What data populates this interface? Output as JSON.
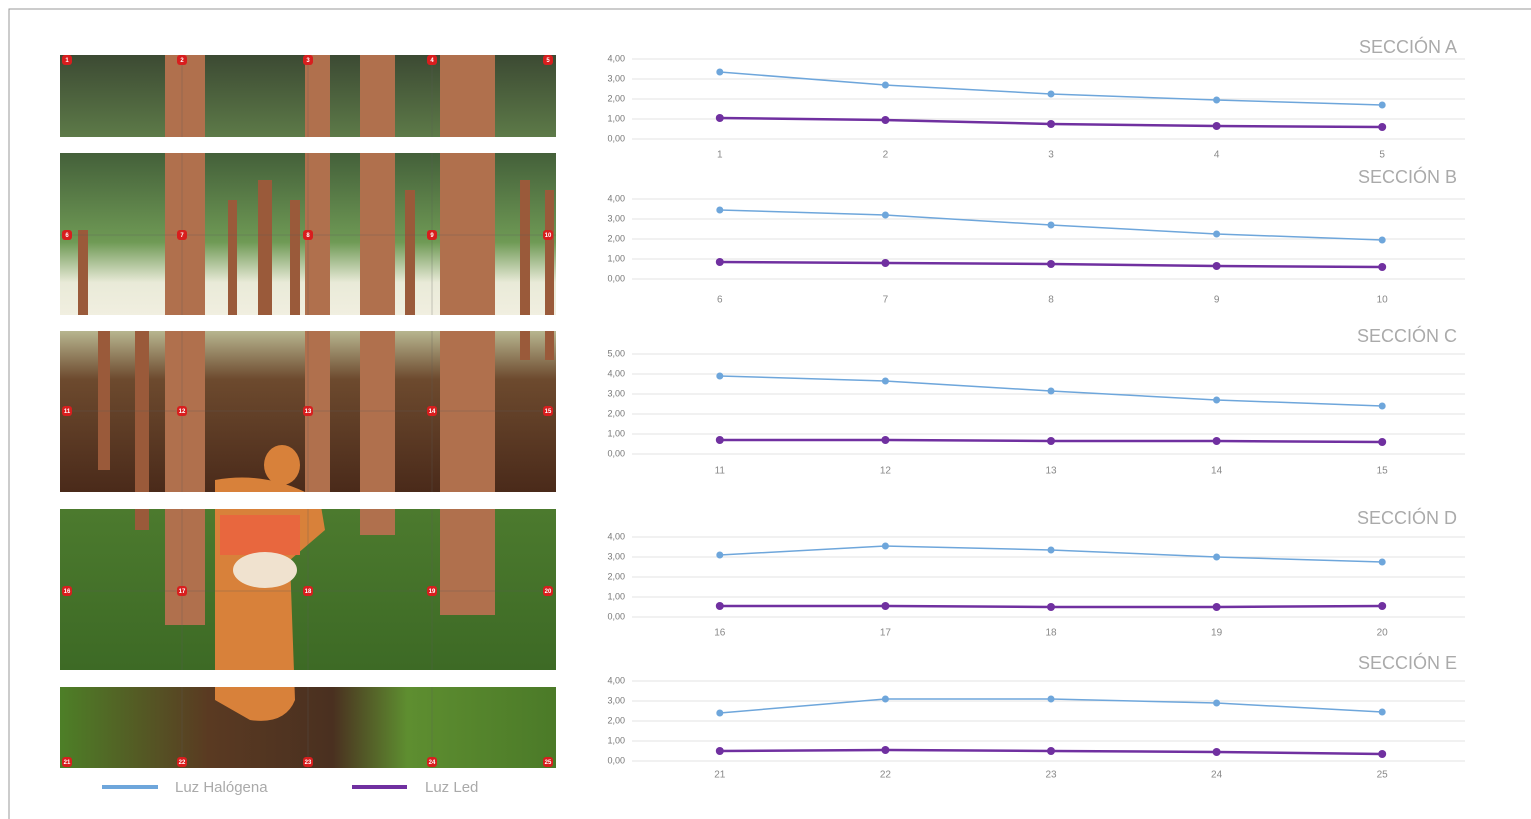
{
  "chart_data": [
    {
      "type": "line",
      "title": "SECCIÓN A",
      "categories": [
        "1",
        "2",
        "3",
        "4",
        "5"
      ],
      "series": [
        {
          "name": "Luz Halógena",
          "color": "#6ea6db",
          "values": [
            3.35,
            2.7,
            2.25,
            1.95,
            1.7
          ]
        },
        {
          "name": "Luz Led",
          "color": "#7030a0",
          "values": [
            1.05,
            0.95,
            0.75,
            0.65,
            0.6
          ]
        }
      ],
      "ylim": [
        0,
        4
      ],
      "yticks": [
        {
          "value": 0,
          "label": "0,00"
        },
        {
          "value": 1,
          "label": "1,00"
        },
        {
          "value": 2,
          "label": "2,00"
        },
        {
          "value": 3,
          "label": "3,00"
        },
        {
          "value": 4,
          "label": "4,00"
        }
      ],
      "grid": true
    },
    {
      "type": "line",
      "title": "SECCIÓN B",
      "categories": [
        "6",
        "7",
        "8",
        "9",
        "10"
      ],
      "series": [
        {
          "name": "Luz Halógena",
          "color": "#6ea6db",
          "values": [
            3.45,
            3.2,
            2.7,
            2.25,
            1.95
          ]
        },
        {
          "name": "Luz Led",
          "color": "#7030a0",
          "values": [
            0.85,
            0.8,
            0.75,
            0.65,
            0.6
          ]
        }
      ],
      "ylim": [
        0,
        4
      ],
      "yticks": [
        {
          "value": 0,
          "label": "0,00"
        },
        {
          "value": 1,
          "label": "1,00"
        },
        {
          "value": 2,
          "label": "2,00"
        },
        {
          "value": 3,
          "label": "3,00"
        },
        {
          "value": 4,
          "label": "4,00"
        }
      ],
      "grid": true
    },
    {
      "type": "line",
      "title": "SECCIÓN C",
      "categories": [
        "11",
        "12",
        "13",
        "14",
        "15"
      ],
      "series": [
        {
          "name": "Luz Halógena",
          "color": "#6ea6db",
          "values": [
            3.9,
            3.65,
            3.15,
            2.7,
            2.4
          ]
        },
        {
          "name": "Luz Led",
          "color": "#7030a0",
          "values": [
            0.7,
            0.7,
            0.65,
            0.65,
            0.6
          ]
        }
      ],
      "ylim": [
        0,
        5
      ],
      "yticks": [
        {
          "value": 0,
          "label": "0,00"
        },
        {
          "value": 1,
          "label": "1,00"
        },
        {
          "value": 2,
          "label": "2,00"
        },
        {
          "value": 3,
          "label": "3,00"
        },
        {
          "value": 4,
          "label": "4,00"
        },
        {
          "value": 5,
          "label": "5,00"
        }
      ],
      "grid": true
    },
    {
      "type": "line",
      "title": "SECCIÓN D",
      "categories": [
        "16",
        "17",
        "18",
        "19",
        "20"
      ],
      "series": [
        {
          "name": "Luz Halógena",
          "color": "#6ea6db",
          "values": [
            3.1,
            3.55,
            3.35,
            3.0,
            2.75
          ]
        },
        {
          "name": "Luz Led",
          "color": "#7030a0",
          "values": [
            0.55,
            0.55,
            0.5,
            0.5,
            0.55
          ]
        }
      ],
      "ylim": [
        0,
        4
      ],
      "yticks": [
        {
          "value": 0,
          "label": "0,00"
        },
        {
          "value": 1,
          "label": "1,00"
        },
        {
          "value": 2,
          "label": "2,00"
        },
        {
          "value": 3,
          "label": "3,00"
        },
        {
          "value": 4,
          "label": "4,00"
        }
      ],
      "grid": true
    },
    {
      "type": "line",
      "title": "SECCIÓN E",
      "categories": [
        "21",
        "22",
        "23",
        "24",
        "25"
      ],
      "series": [
        {
          "name": "Luz Halógena",
          "color": "#6ea6db",
          "values": [
            2.4,
            3.1,
            3.1,
            2.9,
            2.45
          ]
        },
        {
          "name": "Luz Led",
          "color": "#7030a0",
          "values": [
            0.5,
            0.55,
            0.5,
            0.45,
            0.35
          ]
        }
      ],
      "ylim": [
        0,
        4
      ],
      "yticks": [
        {
          "value": 0,
          "label": "0,00"
        },
        {
          "value": 1,
          "label": "1,00"
        },
        {
          "value": 2,
          "label": "2,00"
        },
        {
          "value": 3,
          "label": "3,00"
        },
        {
          "value": 4,
          "label": "4,00"
        }
      ],
      "grid": true
    }
  ]
}
